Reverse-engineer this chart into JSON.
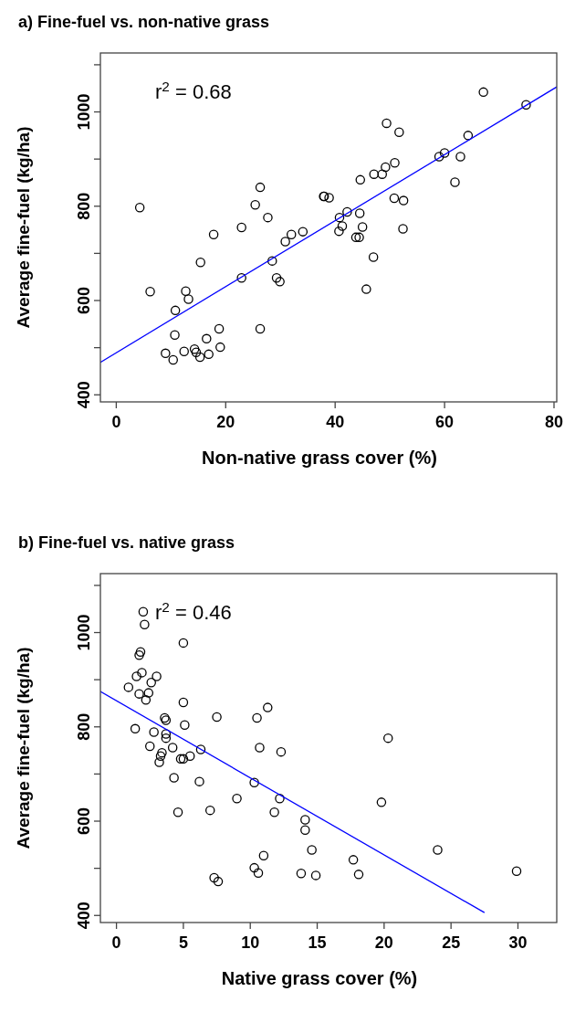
{
  "chart_data": [
    {
      "type": "scatter",
      "title": "a) Fine-fuel vs. non-native grass",
      "xlabel": "Non-native grass cover (%)",
      "ylabel": "Average fine-fuel (kg/ha)",
      "annotations": [
        "r$^{2}$ = 0.68"
      ],
      "xlim": [
        -2.9,
        80.5
      ],
      "ylim": [
        385,
        1125
      ],
      "xticks": [
        0,
        20,
        40,
        60,
        80
      ],
      "yticks": [
        400,
        {
          "value": 500,
          "label": null
        },
        600,
        {
          "value": 700,
          "label": null
        },
        800,
        {
          "value": 900,
          "label": null
        },
        1000,
        {
          "value": 1100,
          "label": null
        }
      ],
      "grid": false,
      "series": [
        {
          "marker": "circle",
          "color": "#000000",
          "x": [
            4.3,
            6.2,
            26.3,
            25.4,
            27.7,
            22.9,
            17.8,
            15.4,
            22.9,
            28.5,
            29.3,
            29.9,
            30.9,
            32.0,
            34.1,
            38.0,
            12.7,
            13.2,
            10.8,
            10.7,
            18.8,
            16.5,
            19.0,
            9.0,
            10.4,
            12.4,
            14.3,
            14.6,
            15.3,
            16.9,
            26.3,
            37.9,
            38.9,
            67.1,
            74.9,
            49.4,
            51.7,
            64.3,
            59.0,
            60.0,
            62.9,
            61.9,
            50.9,
            49.2,
            47.1,
            48.6,
            44.6,
            50.8,
            52.5,
            52.4,
            47.0,
            45.7,
            40.8,
            42.2,
            44.5,
            41.3,
            40.7,
            45.0,
            43.8,
            44.4
          ],
          "values": [
            797,
            619,
            840,
            803,
            776,
            755,
            740,
            681,
            648,
            684,
            648,
            640,
            725,
            740,
            746,
            821,
            620,
            603,
            579,
            527,
            540,
            519,
            501,
            488,
            474,
            492,
            497,
            490,
            480,
            486,
            540,
            821,
            818,
            1042,
            1015,
            976,
            957,
            950,
            905,
            913,
            905,
            851,
            892,
            883,
            868,
            868,
            856,
            817,
            812,
            752,
            692,
            624,
            776,
            788,
            785,
            758,
            747,
            756,
            734,
            734
          ]
        },
        {
          "type": "line",
          "color": "#0000ff",
          "x": [
            -2.9,
            80.5
          ],
          "values": [
            469,
            1053
          ]
        }
      ]
    },
    {
      "type": "scatter",
      "title": "b) Fine-fuel vs. native grass",
      "xlabel": "Native grass cover (%)",
      "ylabel": "Average fine-fuel (kg/ha)",
      "annotations": [
        "r$^{2}$ = 0.46"
      ],
      "xlim": [
        -1.2,
        32.9
      ],
      "ylim": [
        385,
        1125
      ],
      "xticks": [
        0,
        5,
        10,
        15,
        20,
        25,
        30
      ],
      "yticks": [
        400,
        {
          "value": 500,
          "label": null
        },
        600,
        {
          "value": 700,
          "label": null
        },
        800,
        {
          "value": 900,
          "label": null
        },
        1000,
        {
          "value": 1100,
          "label": null
        }
      ],
      "grid": false,
      "series": [
        {
          "marker": "circle",
          "color": "#000000",
          "x": [
            2.0,
            2.1,
            5.0,
            1.8,
            1.7,
            1.9,
            1.5,
            3.0,
            2.6,
            0.9,
            1.7,
            2.4,
            2.2,
            5.0,
            7.5,
            11.3,
            10.5,
            3.6,
            3.7,
            1.4,
            5.1,
            2.8,
            3.7,
            3.7,
            2.5,
            4.2,
            10.7,
            6.3,
            12.3,
            3.4,
            3.3,
            5.5,
            4.8,
            5.0,
            3.2,
            4.3,
            6.2,
            10.3,
            12.2,
            9.0,
            11.8,
            4.6,
            7.0,
            14.1,
            14.1,
            14.6,
            11.0,
            10.3,
            10.6,
            13.8,
            14.9,
            7.3,
            7.6,
            20.3,
            19.8,
            24.0,
            17.7,
            18.1,
            29.9
          ],
          "values": [
            1044,
            1017,
            978,
            959,
            952,
            915,
            907,
            907,
            894,
            884,
            870,
            872,
            857,
            852,
            821,
            841,
            819,
            819,
            814,
            796,
            804,
            789,
            785,
            776,
            759,
            756,
            756,
            752,
            747,
            745,
            738,
            738,
            732,
            732,
            725,
            692,
            684,
            682,
            648,
            648,
            619,
            619,
            623,
            603,
            581,
            539,
            527,
            501,
            490,
            489,
            485,
            480,
            472,
            776,
            640,
            539,
            518,
            487,
            494
          ]
        },
        {
          "type": "line",
          "color": "#0000ff",
          "x": [
            -1.2,
            27.5
          ],
          "values": [
            875,
            406
          ]
        }
      ]
    }
  ]
}
